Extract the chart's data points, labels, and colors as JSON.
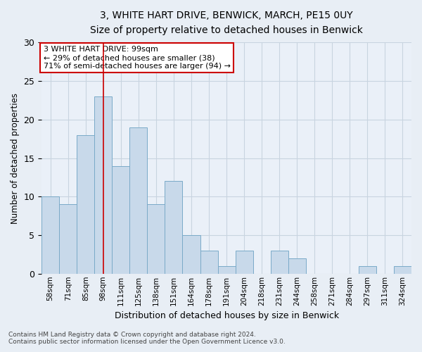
{
  "title1": "3, WHITE HART DRIVE, BENWICK, MARCH, PE15 0UY",
  "title2": "Size of property relative to detached houses in Benwick",
  "xlabel": "Distribution of detached houses by size in Benwick",
  "ylabel": "Number of detached properties",
  "bar_labels": [
    "58sqm",
    "71sqm",
    "85sqm",
    "98sqm",
    "111sqm",
    "125sqm",
    "138sqm",
    "151sqm",
    "164sqm",
    "178sqm",
    "191sqm",
    "204sqm",
    "218sqm",
    "231sqm",
    "244sqm",
    "258sqm",
    "271sqm",
    "284sqm",
    "297sqm",
    "311sqm",
    "324sqm"
  ],
  "bar_values": [
    10,
    9,
    18,
    23,
    14,
    19,
    9,
    12,
    5,
    3,
    1,
    3,
    0,
    3,
    2,
    0,
    0,
    0,
    1,
    0,
    1
  ],
  "bar_color": "#c8d9ea",
  "bar_edge_color": "#7aaac8",
  "ylim": [
    0,
    30
  ],
  "yticks": [
    0,
    5,
    10,
    15,
    20,
    25,
    30
  ],
  "annotation_box_text": "3 WHITE HART DRIVE: 99sqm\n← 29% of detached houses are smaller (38)\n71% of semi-detached houses are larger (94) →",
  "annotation_box_color": "#ffffff",
  "annotation_box_edge_color": "#cc0000",
  "grid_color": "#c8d4e0",
  "bg_color": "#e8eef5",
  "plot_bg_color": "#eaf0f8",
  "footer1": "Contains HM Land Registry data © Crown copyright and database right 2024.",
  "footer2": "Contains public sector information licensed under the Open Government Licence v3.0.",
  "property_line_index": 3,
  "property_line_color": "#cc0000"
}
